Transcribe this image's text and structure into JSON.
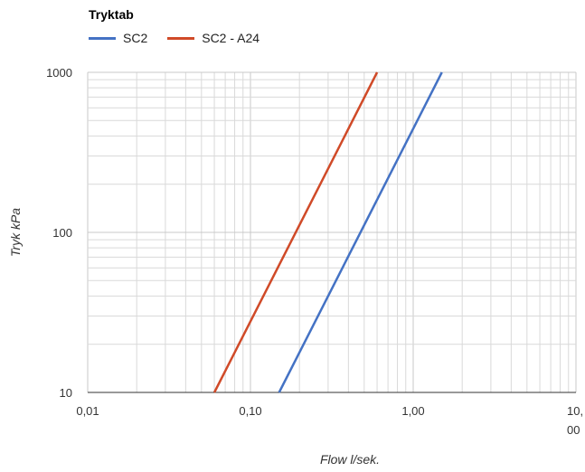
{
  "chart_data": {
    "type": "line",
    "legend_title": "Tryktab",
    "legend_position": "top-left",
    "xlabel": "Flow l/sek.",
    "ylabel": "Tryk kPa",
    "x_scale": "log",
    "y_scale": "log",
    "xlim": [
      0.01,
      10
    ],
    "ylim": [
      10,
      1000
    ],
    "grid": true,
    "x_tick_values": [
      0.01,
      0.1,
      1,
      10
    ],
    "x_tick_labels": [
      "0,01",
      "0,10",
      "1,00",
      "10,"
    ],
    "x_tick_labels_overflow": [
      "",
      "",
      "",
      "00"
    ],
    "y_tick_values": [
      10,
      100,
      1000
    ],
    "y_tick_labels": [
      "10",
      "100",
      "1000"
    ],
    "series": [
      {
        "name": "SC2",
        "color": "#4472c4",
        "x": [
          0.15,
          1.5
        ],
        "y": [
          10,
          1000
        ]
      },
      {
        "name": "SC2 - A24",
        "color": "#d04a28",
        "x": [
          0.06,
          0.6
        ],
        "y": [
          10,
          1000
        ]
      }
    ]
  }
}
